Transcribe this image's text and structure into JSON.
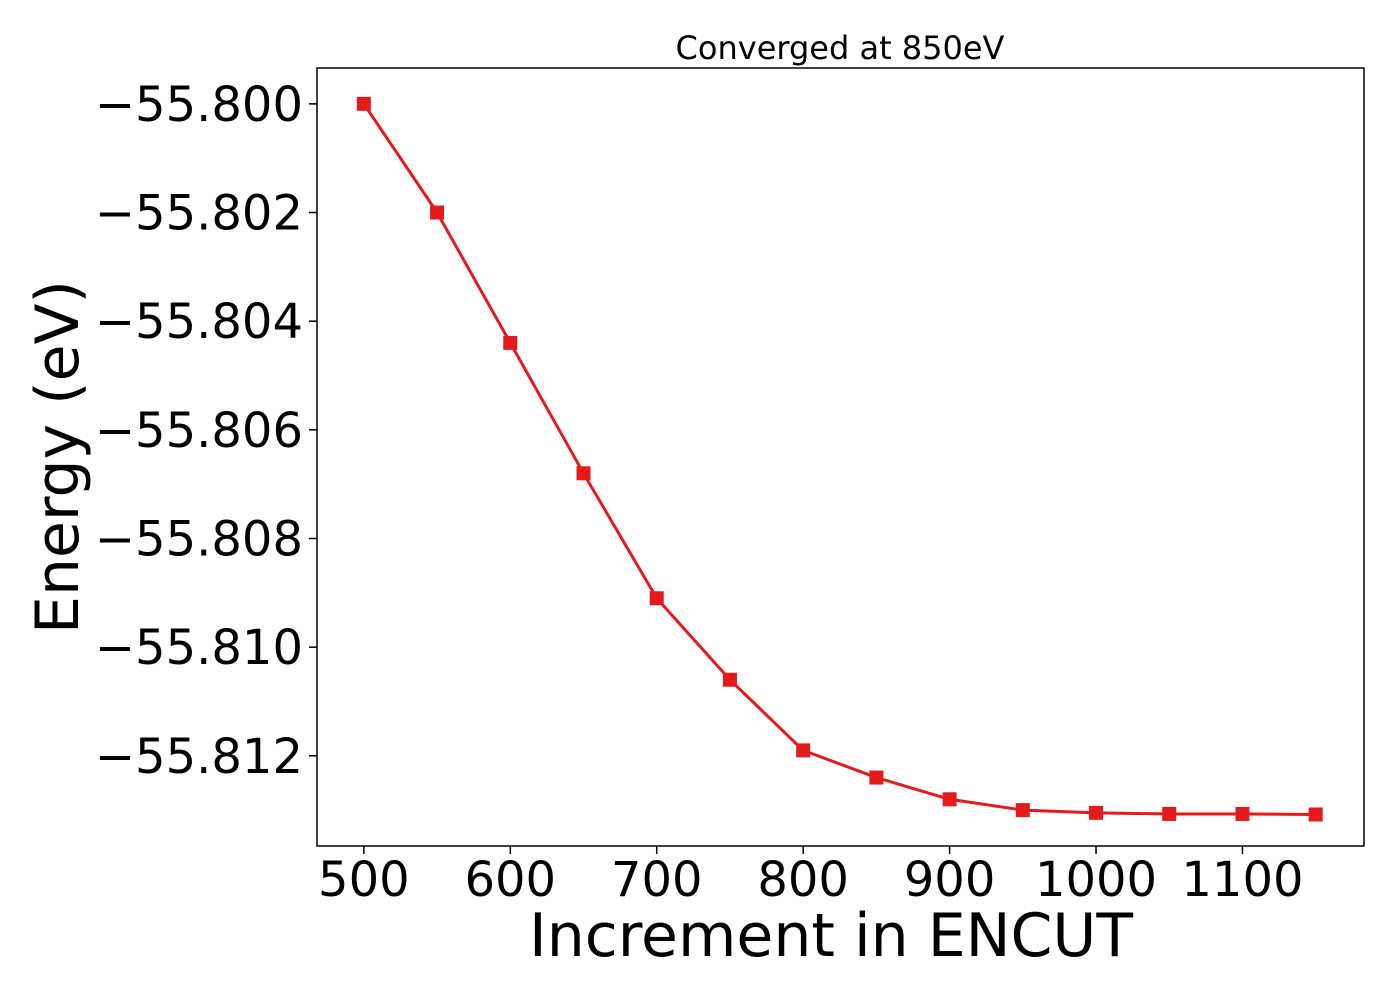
{
  "chart_data": {
    "type": "line",
    "title": "Converged at 850eV",
    "xlabel": "Increment in ENCUT",
    "ylabel": "Energy (eV)",
    "xlim": [
      468,
      1183
    ],
    "ylim": [
      -55.81366,
      -55.79934
    ],
    "xticks": [
      500,
      600,
      700,
      800,
      900,
      1000,
      1100
    ],
    "xtick_labels": [
      "500",
      "600",
      "700",
      "800",
      "900",
      "1000",
      "1100"
    ],
    "yticks": [
      -55.8,
      -55.802,
      -55.804,
      -55.806,
      -55.808,
      -55.81,
      -55.812
    ],
    "ytick_labels": [
      "−55.800",
      "−55.802",
      "−55.804",
      "−55.806",
      "−55.808",
      "−55.810",
      "−55.812"
    ],
    "grid": false,
    "legend": "none",
    "series": [
      {
        "color": "#e41a1c",
        "marker": "square",
        "x": [
          500,
          550,
          600,
          650,
          700,
          750,
          800,
          850,
          900,
          950,
          1000,
          1050,
          1100,
          1150
        ],
        "y": [
          -55.8,
          -55.802,
          -55.8044,
          -55.8068,
          -55.8091,
          -55.8106,
          -55.8119,
          -55.8124,
          -55.8128,
          -55.813,
          -55.81305,
          -55.81307,
          -55.81307,
          -55.81308
        ]
      }
    ]
  }
}
